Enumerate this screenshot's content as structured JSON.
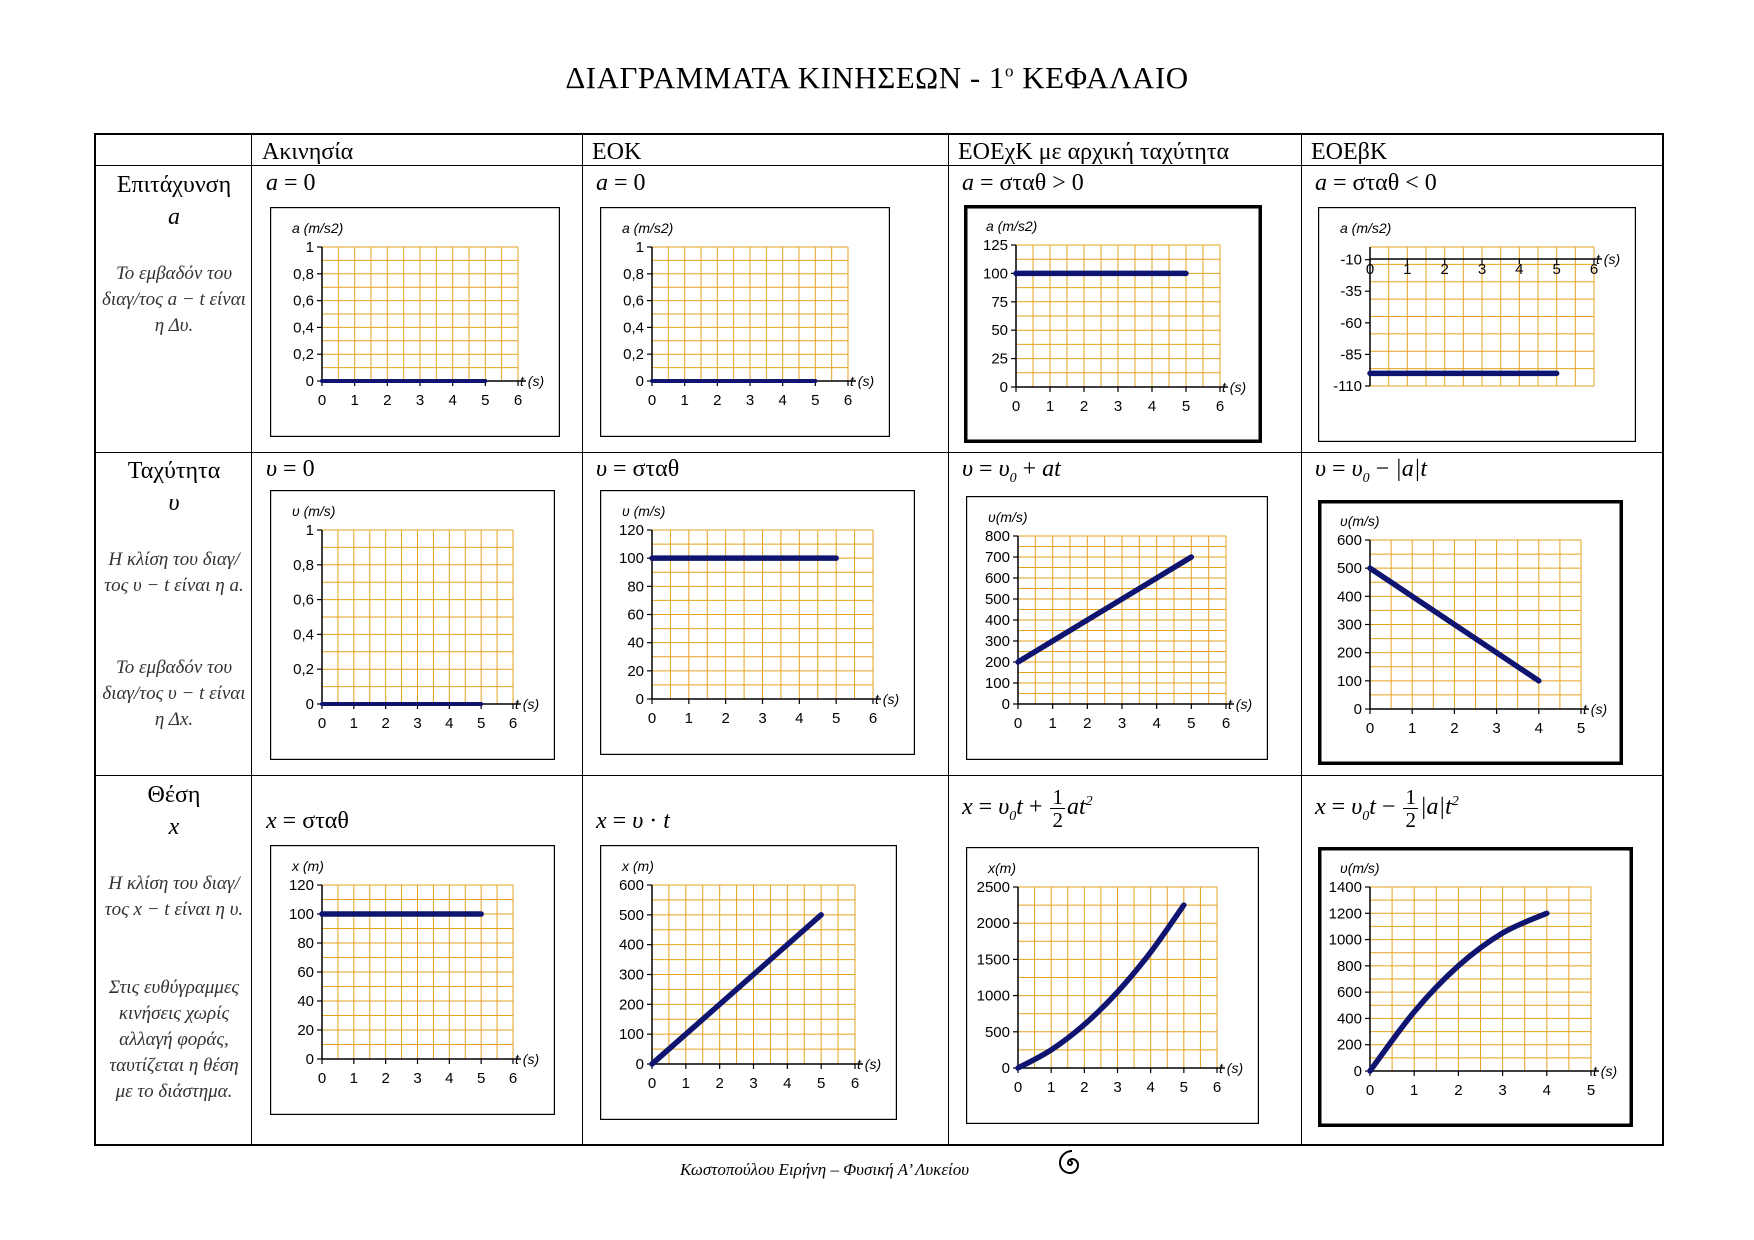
{
  "title": {
    "main": "ΔΙΑΓΡΑΜΜΑΤΑ ΚΙΝΗΣΕΩΝ  - 1",
    "sup": "ο",
    "tail": " ΚΕΦΑΛΑΙΟ"
  },
  "columns": [
    "Ακινησία",
    "ΕΟΚ",
    "ΕΟΕχΚ με αρχική ταχύτητα",
    "ΕΟΕβΚ"
  ],
  "rows": [
    {
      "label": "Επιτάχυνση",
      "symbol": "a",
      "notes": [
        "Το εμβαδόν του διαγ/τος a − t είναι η Δυ."
      ]
    },
    {
      "label": "Ταχύτητα",
      "symbol": "υ",
      "notes": [
        "Η κλίση του διαγ/τος υ − t είναι η a.",
        "Το εμβαδόν του διαγ/τος υ − t είναι η Δx."
      ]
    },
    {
      "label": "Θέση",
      "symbol": "x",
      "notes": [
        "Η κλίση του διαγ/τος x − t είναι η υ.",
        "Στις ευθύγραμμες κινήσεις χωρίς αλλαγή φοράς, ταυτίζεται η θέση με το διάστημα."
      ]
    }
  ],
  "formulas": {
    "r0c0": "a = 0",
    "r0c1": "a = 0",
    "r0c2": "a = σταθ > 0",
    "r0c3": "a = σταθ < 0",
    "r1c0": "υ = 0",
    "r1c1": "υ = σταθ",
    "r1c2": "υ = υ0 + at",
    "r1c3": "υ = υ0 − |a|t",
    "r2c0": "x = σταθ",
    "r2c1": "x = υ · t",
    "r2c2": "x = υ0t + ½at²",
    "r2c3": "x = υ0t − ½|a|t²"
  },
  "footer": "Κωστοπούλου Ειρήνη – Φυσική Α’ Λυκείου",
  "colors": {
    "grid": "#E6A21F",
    "line": "#0F1470",
    "axis": "#000000"
  },
  "chart_data": [
    {
      "type": "line",
      "ylabel": "a (m/s2)",
      "xlabel": "t (s)",
      "xlim": [
        0,
        6
      ],
      "ylim": [
        0,
        1
      ],
      "xticks": [
        0,
        1,
        2,
        3,
        4,
        5,
        6
      ],
      "yticks": [
        0,
        0.2,
        0.4,
        0.6,
        0.8,
        1
      ],
      "yticklabels": [
        "0",
        "0,2",
        "0,4",
        "0,6",
        "0,8",
        "1"
      ],
      "x": [
        0,
        5
      ],
      "y": [
        0,
        0
      ]
    },
    {
      "type": "line",
      "ylabel": "a (m/s2)",
      "xlabel": "t (s)",
      "xlim": [
        0,
        6
      ],
      "ylim": [
        0,
        1
      ],
      "xticks": [
        0,
        1,
        2,
        3,
        4,
        5,
        6
      ],
      "yticks": [
        0,
        0.2,
        0.4,
        0.6,
        0.8,
        1
      ],
      "yticklabels": [
        "0",
        "0,2",
        "0,4",
        "0,6",
        "0,8",
        "1"
      ],
      "x": [
        0,
        5
      ],
      "y": [
        0,
        0
      ]
    },
    {
      "type": "line",
      "ylabel": "a (m/s2)",
      "xlabel": "t (s)",
      "xlim": [
        0,
        6
      ],
      "ylim": [
        0,
        125
      ],
      "xticks": [
        0,
        1,
        2,
        3,
        4,
        5,
        6
      ],
      "yticks": [
        0,
        25,
        50,
        75,
        100,
        125
      ],
      "yticklabels": [
        "0",
        "25",
        "50",
        "75",
        "100",
        "125"
      ],
      "x": [
        0,
        5
      ],
      "y": [
        100,
        100
      ]
    },
    {
      "type": "line",
      "ylabel": "a (m/s2)",
      "xlabel": "t (s)",
      "xlim": [
        0,
        6
      ],
      "ylim": [
        -110,
        0
      ],
      "xticks": [
        0,
        1,
        2,
        3,
        4,
        5,
        6
      ],
      "yticks": [
        -110,
        -85,
        -60,
        -35,
        -10
      ],
      "yticklabels": [
        "-110",
        "-85",
        "-60",
        "-35",
        "-10"
      ],
      "x": [
        0,
        5
      ],
      "y": [
        -100,
        -100
      ]
    },
    {
      "type": "line",
      "ylabel": "υ (m/s)",
      "xlabel": "t (s)",
      "xlim": [
        0,
        6
      ],
      "ylim": [
        0,
        1
      ],
      "xticks": [
        0,
        1,
        2,
        3,
        4,
        5,
        6
      ],
      "yticks": [
        0,
        0.2,
        0.4,
        0.6,
        0.8,
        1
      ],
      "yticklabels": [
        "0",
        "0,2",
        "0,4",
        "0,6",
        "0,8",
        "1"
      ],
      "x": [
        0,
        5
      ],
      "y": [
        0,
        0
      ]
    },
    {
      "type": "line",
      "ylabel": "υ (m/s)",
      "xlabel": "t (s)",
      "xlim": [
        0,
        6
      ],
      "ylim": [
        0,
        120
      ],
      "xticks": [
        0,
        1,
        2,
        3,
        4,
        5,
        6
      ],
      "yticks": [
        0,
        20,
        40,
        60,
        80,
        100,
        120
      ],
      "yticklabels": [
        "0",
        "20",
        "40",
        "60",
        "80",
        "100",
        "120"
      ],
      "x": [
        0,
        5
      ],
      "y": [
        100,
        100
      ]
    },
    {
      "type": "line",
      "ylabel": "υ(m/s)",
      "xlabel": "t (s)",
      "xlim": [
        0,
        6
      ],
      "ylim": [
        0,
        800
      ],
      "xticks": [
        0,
        1,
        2,
        3,
        4,
        5,
        6
      ],
      "yticks": [
        0,
        100,
        200,
        300,
        400,
        500,
        600,
        700,
        800
      ],
      "yticklabels": [
        "0",
        "100",
        "200",
        "300",
        "400",
        "500",
        "600",
        "700",
        "800"
      ],
      "x": [
        0,
        5
      ],
      "y": [
        200,
        700
      ]
    },
    {
      "type": "line",
      "ylabel": "υ(m/s)",
      "xlabel": "t (s)",
      "xlim": [
        0,
        5
      ],
      "ylim": [
        0,
        600
      ],
      "xticks": [
        0,
        1,
        2,
        3,
        4,
        5
      ],
      "yticks": [
        0,
        100,
        200,
        300,
        400,
        500,
        600
      ],
      "yticklabels": [
        "0",
        "100",
        "200",
        "300",
        "400",
        "500",
        "600"
      ],
      "x": [
        0,
        4
      ],
      "y": [
        500,
        100
      ]
    },
    {
      "type": "line",
      "ylabel": "x (m)",
      "xlabel": "t (s)",
      "xlim": [
        0,
        6
      ],
      "ylim": [
        0,
        120
      ],
      "xticks": [
        0,
        1,
        2,
        3,
        4,
        5,
        6
      ],
      "yticks": [
        0,
        20,
        40,
        60,
        80,
        100,
        120
      ],
      "yticklabels": [
        "0",
        "20",
        "40",
        "60",
        "80",
        "100",
        "120"
      ],
      "x": [
        0,
        5
      ],
      "y": [
        100,
        100
      ]
    },
    {
      "type": "line",
      "ylabel": "x (m)",
      "xlabel": "t (s)",
      "xlim": [
        0,
        6
      ],
      "ylim": [
        0,
        600
      ],
      "xticks": [
        0,
        1,
        2,
        3,
        4,
        5,
        6
      ],
      "yticks": [
        0,
        100,
        200,
        300,
        400,
        500,
        600
      ],
      "yticklabels": [
        "0",
        "100",
        "200",
        "300",
        "400",
        "500",
        "600"
      ],
      "x": [
        0,
        5
      ],
      "y": [
        0,
        500
      ]
    },
    {
      "type": "line",
      "ylabel": "x(m)",
      "xlabel": "t (s)",
      "xlim": [
        0,
        6
      ],
      "ylim": [
        0,
        2500
      ],
      "xticks": [
        0,
        1,
        2,
        3,
        4,
        5,
        6
      ],
      "yticks": [
        0,
        500,
        1000,
        1500,
        2000,
        2500
      ],
      "yticklabels": [
        "0",
        "500",
        "1000",
        "1500",
        "2000",
        "2500"
      ],
      "x": [
        0,
        1,
        2,
        3,
        4,
        5
      ],
      "y": [
        0,
        250,
        600,
        1050,
        1600,
        2250
      ]
    },
    {
      "type": "line",
      "ylabel": "υ(m/s)",
      "xlabel": "t (s)",
      "xlim": [
        0,
        5
      ],
      "ylim": [
        0,
        1400
      ],
      "xticks": [
        0,
        1,
        2,
        3,
        4,
        5
      ],
      "yticks": [
        0,
        200,
        400,
        600,
        800,
        1000,
        1200,
        1400
      ],
      "yticklabels": [
        "0",
        "200",
        "400",
        "600",
        "800",
        "1000",
        "1200",
        "1400"
      ],
      "x": [
        0,
        1,
        2,
        3,
        4
      ],
      "y": [
        0,
        450,
        800,
        1050,
        1200
      ]
    }
  ]
}
